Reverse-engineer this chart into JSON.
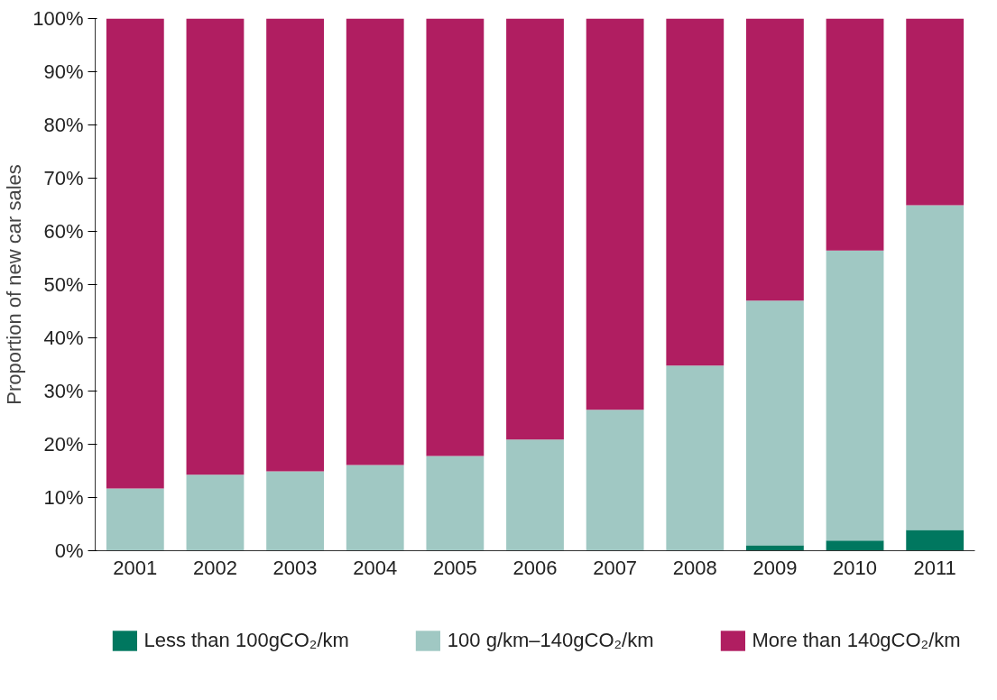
{
  "chart_data": {
    "type": "bar",
    "stacked": true,
    "ylabel": "Proportion of new car sales",
    "categories": [
      "2001",
      "2002",
      "2003",
      "2004",
      "2005",
      "2006",
      "2007",
      "2008",
      "2009",
      "2010",
      "2011"
    ],
    "series": [
      {
        "name": "Less than 100gCO₂/km",
        "color": "#00775f",
        "values": [
          0,
          0.1,
          0.1,
          0.1,
          0,
          0,
          0.1,
          0,
          1,
          1.9,
          3.9
        ]
      },
      {
        "name": "100 g/km–140gCO₂/km",
        "color": "#a0c8c3",
        "values": [
          11.7,
          14.2,
          14.8,
          16,
          17.8,
          20.9,
          26.4,
          34.8,
          46,
          54.5,
          61
        ]
      },
      {
        "name": "More than 140gCO₂/km",
        "color": "#b01e61",
        "values": [
          88.3,
          85.7,
          85.1,
          83.9,
          82.2,
          79.1,
          73.5,
          65.2,
          53,
          43.6,
          35.1
        ]
      }
    ],
    "ylim": [
      0,
      100
    ],
    "yticks": [
      {
        "value": 0,
        "label": "0%"
      },
      {
        "value": 10,
        "label": "10%"
      },
      {
        "value": 20,
        "label": "20%"
      },
      {
        "value": 30,
        "label": "30%"
      },
      {
        "value": 40,
        "label": "40%"
      },
      {
        "value": 50,
        "label": "50%"
      },
      {
        "value": 60,
        "label": "60%"
      },
      {
        "value": 70,
        "label": "70%"
      },
      {
        "value": 80,
        "label": "80%"
      },
      {
        "value": 90,
        "label": "90%"
      },
      {
        "value": 100,
        "label": "100%"
      }
    ],
    "grid": false,
    "legend": "bottom"
  }
}
